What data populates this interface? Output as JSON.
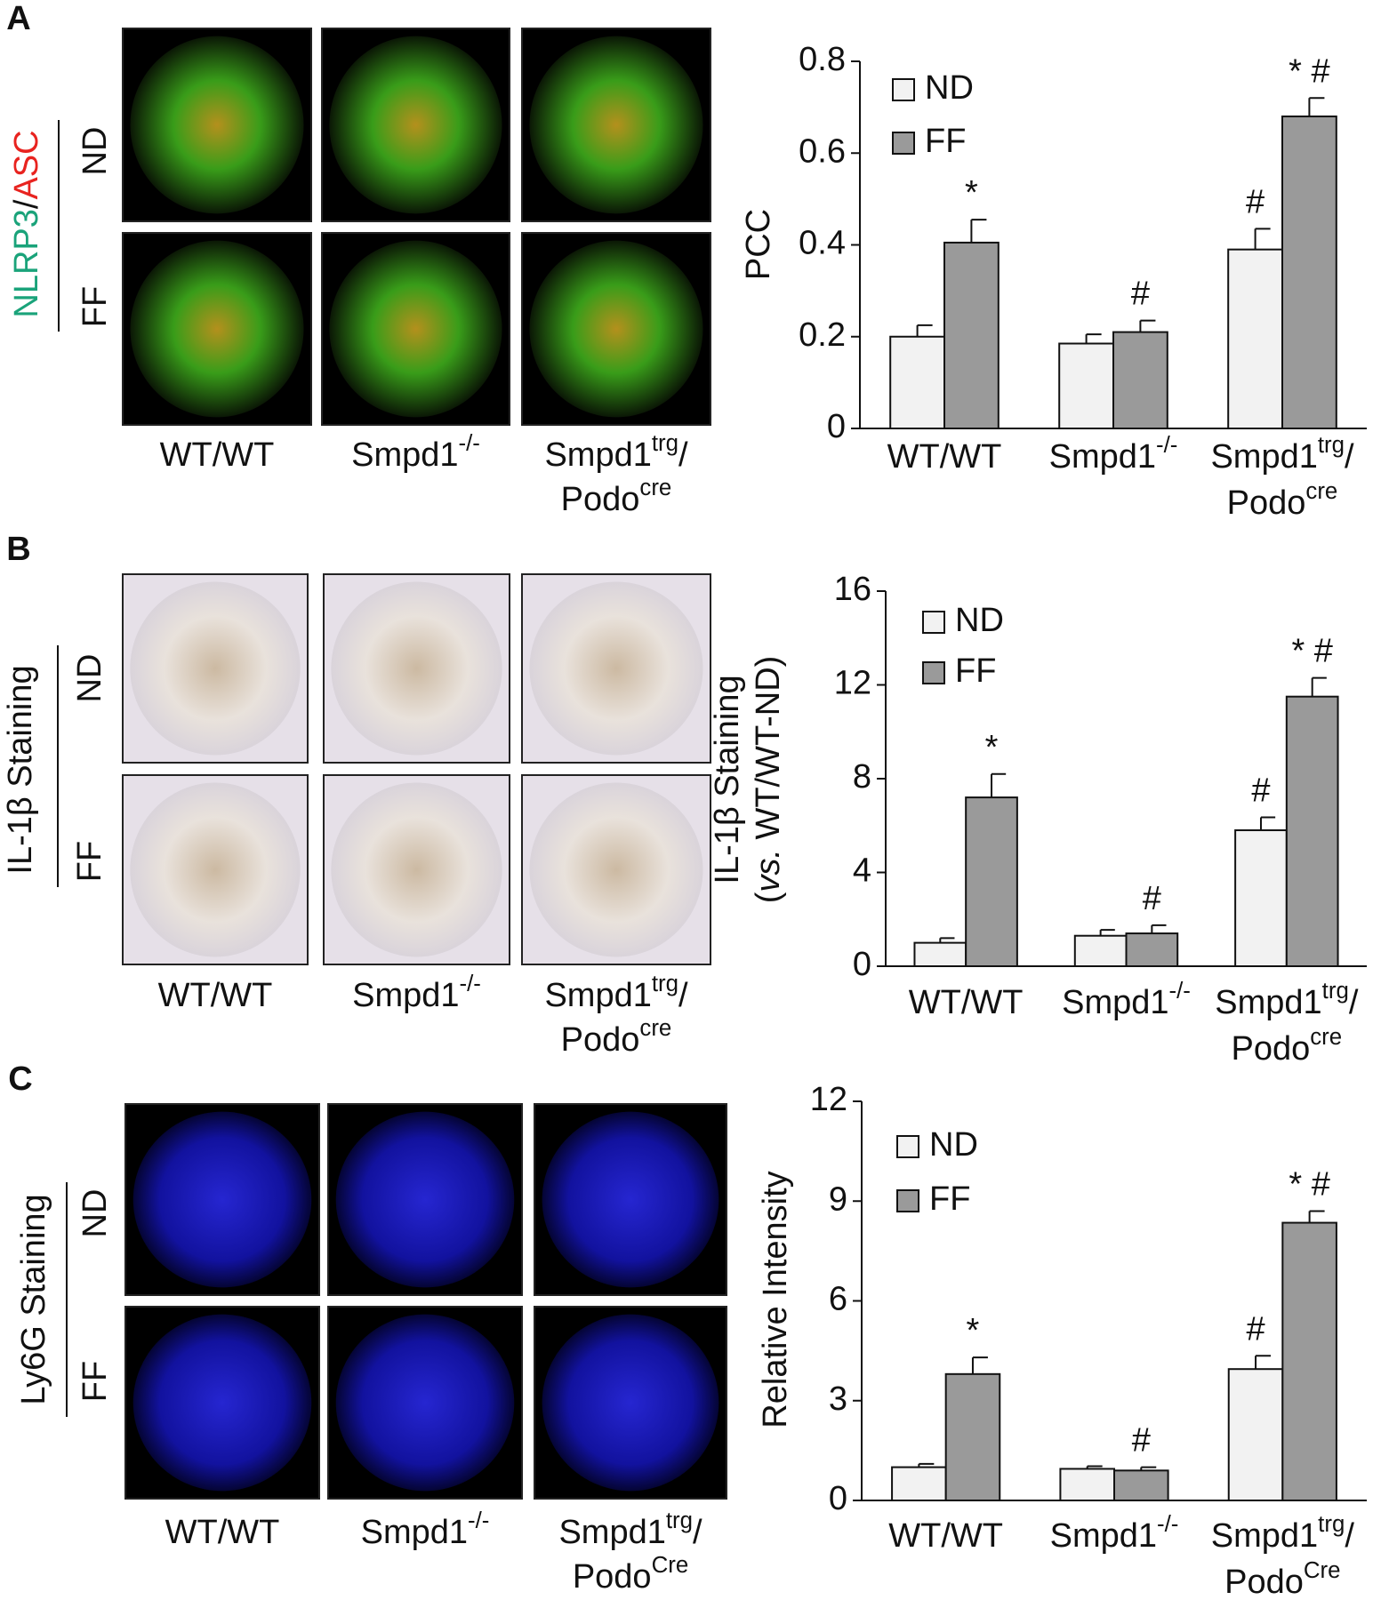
{
  "panels": [
    {
      "label": "A",
      "stain_label": [
        {
          "text": "NLRP3",
          "color": "#1aa37a"
        },
        {
          "text": "/"
        },
        {
          "text": "ASC",
          "color": "#e8231f"
        }
      ],
      "rows": [
        "ND",
        "FF"
      ],
      "columns": [
        [
          [
            {
              "text": "WT/WT"
            }
          ]
        ],
        [
          [
            {
              "text": "Smpd1"
            },
            {
              "text": "-/-",
              "sup": true
            }
          ]
        ],
        [
          [
            {
              "text": "Smpd1"
            },
            {
              "text": "trg",
              "sup": true
            },
            {
              "text": "/"
            }
          ],
          [
            {
              "text": "Podo"
            },
            {
              "text": "cre",
              "sup": true
            }
          ]
        ]
      ]
    },
    {
      "label": "B",
      "stain_label": [
        {
          "text": "IL-1β Staining"
        }
      ],
      "rows": [
        "ND",
        "FF"
      ],
      "columns": [
        [
          [
            {
              "text": "WT/WT"
            }
          ]
        ],
        [
          [
            {
              "text": "Smpd1"
            },
            {
              "text": "-/-",
              "sup": true
            }
          ]
        ],
        [
          [
            {
              "text": "Smpd1"
            },
            {
              "text": "trg",
              "sup": true
            },
            {
              "text": "/"
            }
          ],
          [
            {
              "text": "Podo"
            },
            {
              "text": "cre",
              "sup": true
            }
          ]
        ]
      ]
    },
    {
      "label": "C",
      "stain_label": [
        {
          "text": "Ly6G Staining"
        }
      ],
      "rows": [
        "ND",
        "FF"
      ],
      "columns": [
        [
          [
            {
              "text": "WT/WT"
            }
          ]
        ],
        [
          [
            {
              "text": "Smpd1"
            },
            {
              "text": "-/-",
              "sup": true
            }
          ]
        ],
        [
          [
            {
              "text": "Smpd1"
            },
            {
              "text": "trg",
              "sup": true
            },
            {
              "text": "/"
            }
          ],
          [
            {
              "text": "Podo"
            },
            {
              "text": "Cre",
              "sup": true
            }
          ]
        ]
      ]
    }
  ],
  "chart_data": [
    {
      "type": "bar",
      "y_label": [
        [
          {
            "text": "PCC"
          }
        ]
      ],
      "categories": [
        [
          [
            {
              "text": "WT/WT"
            }
          ]
        ],
        [
          [
            {
              "text": "Smpd1"
            },
            {
              "text": "-/-",
              "sup": true
            }
          ]
        ],
        [
          [
            {
              "text": "Smpd1"
            },
            {
              "text": "trg",
              "sup": true
            },
            {
              "text": "/"
            }
          ],
          [
            {
              "text": "Podo"
            },
            {
              "text": "cre",
              "sup": true
            }
          ]
        ]
      ],
      "series": [
        {
          "name": "ND",
          "color": "#f2f2f2",
          "values": [
            0.2,
            0.185,
            0.39
          ],
          "errors": [
            0.025,
            0.02,
            0.045
          ],
          "annotations": [
            null,
            null,
            "#"
          ]
        },
        {
          "name": "FF",
          "color": "#9a9a9a",
          "values": [
            0.405,
            0.21,
            0.68
          ],
          "errors": [
            0.05,
            0.025,
            0.04
          ],
          "annotations": [
            "*",
            "#",
            "* #"
          ]
        }
      ],
      "ylim": [
        0,
        0.8
      ],
      "yticks": [
        0,
        0.2,
        0.4,
        0.6,
        0.8
      ],
      "legend": "top-left"
    },
    {
      "type": "bar",
      "y_label": [
        [
          {
            "text": "IL-1β Staining"
          }
        ],
        [
          {
            "text": "("
          },
          {
            "text": "vs.",
            "italic": true
          },
          {
            "text": " WT/WT-ND)"
          }
        ]
      ],
      "categories": [
        [
          [
            {
              "text": "WT/WT"
            }
          ]
        ],
        [
          [
            {
              "text": "Smpd1"
            },
            {
              "text": "-/-",
              "sup": true
            }
          ]
        ],
        [
          [
            {
              "text": "Smpd1"
            },
            {
              "text": "trg",
              "sup": true
            },
            {
              "text": "/"
            }
          ],
          [
            {
              "text": "Podo"
            },
            {
              "text": "cre",
              "sup": true
            }
          ]
        ]
      ],
      "series": [
        {
          "name": "ND",
          "color": "#f2f2f2",
          "values": [
            1,
            1.3,
            5.8
          ],
          "errors": [
            0.2,
            0.25,
            0.55
          ],
          "annotations": [
            null,
            null,
            "#"
          ]
        },
        {
          "name": "FF",
          "color": "#9a9a9a",
          "values": [
            7.2,
            1.4,
            11.5
          ],
          "errors": [
            1.0,
            0.35,
            0.8
          ],
          "annotations": [
            "*",
            "#",
            "* #"
          ]
        }
      ],
      "ylim": [
        0,
        16
      ],
      "yticks": [
        0,
        4,
        8,
        12,
        16
      ],
      "legend": "top-left"
    },
    {
      "type": "bar",
      "y_label": [
        [
          {
            "text": "Relative Intensity"
          }
        ]
      ],
      "categories": [
        [
          [
            {
              "text": "WT/WT"
            }
          ]
        ],
        [
          [
            {
              "text": "Smpd1"
            },
            {
              "text": "-/-",
              "sup": true
            }
          ]
        ],
        [
          [
            {
              "text": "Smpd1"
            },
            {
              "text": "trg",
              "sup": true
            },
            {
              "text": "/"
            }
          ],
          [
            {
              "text": "Podo"
            },
            {
              "text": "Cre",
              "sup": true
            }
          ]
        ]
      ],
      "series": [
        {
          "name": "ND",
          "color": "#f2f2f2",
          "values": [
            1,
            0.95,
            3.95
          ],
          "errors": [
            0.1,
            0.08,
            0.4
          ],
          "annotations": [
            null,
            null,
            "#"
          ]
        },
        {
          "name": "FF",
          "color": "#9a9a9a",
          "values": [
            3.8,
            0.9,
            8.35
          ],
          "errors": [
            0.5,
            0.1,
            0.35
          ],
          "annotations": [
            "*",
            "#",
            "* #"
          ]
        }
      ],
      "ylim": [
        0,
        12
      ],
      "yticks": [
        0,
        3,
        6,
        9,
        12
      ],
      "legend": "top-left"
    }
  ]
}
